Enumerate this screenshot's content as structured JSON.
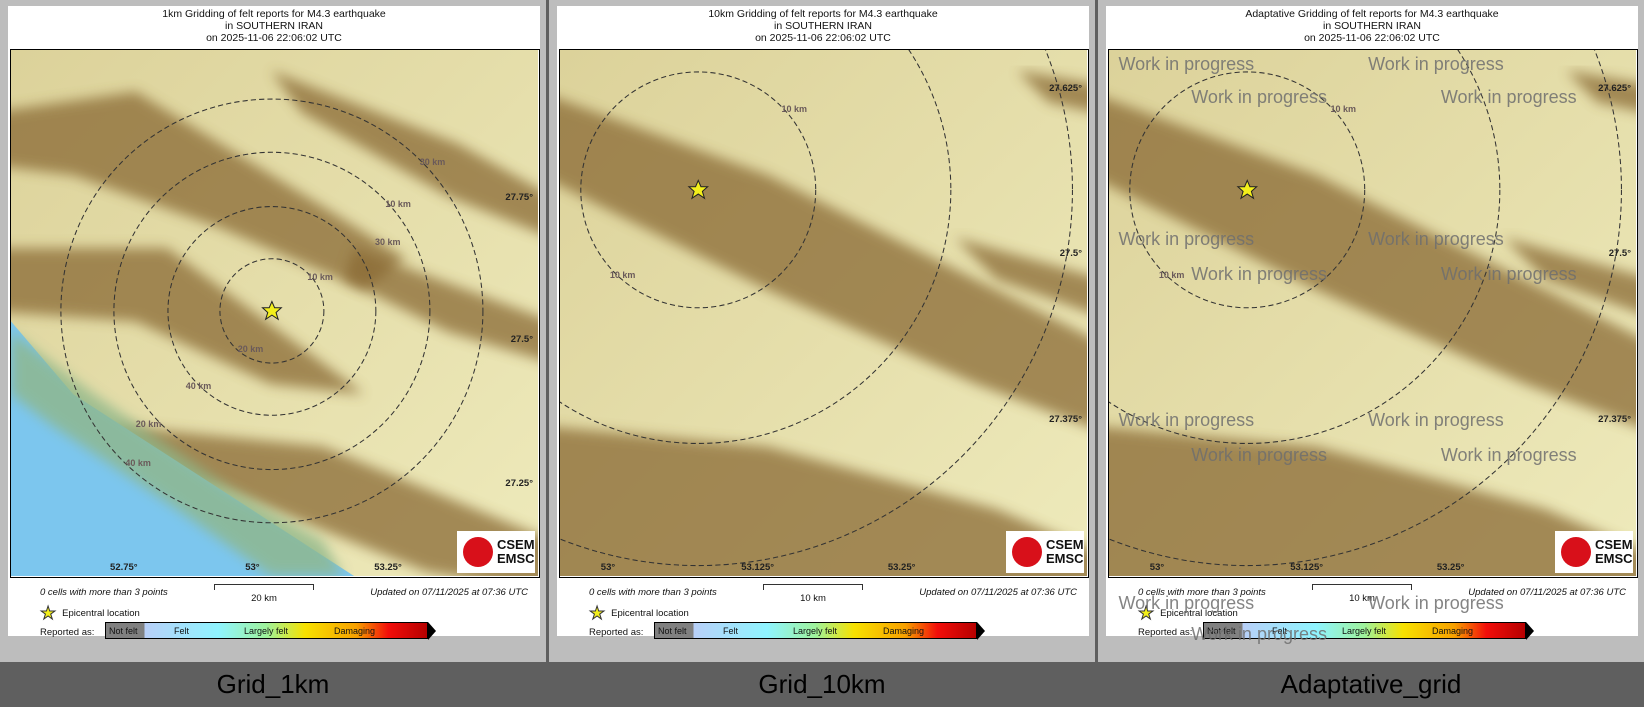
{
  "panels": [
    {
      "id": "grid-1km",
      "title": [
        "1km Gridding of felt reports for M4.3 earthquake",
        "in SOUTHERN IRAN",
        "on  2025-11-06 22:06:02 UTC"
      ],
      "lat_labels": [
        "27.75°",
        "27.5°",
        "27.25°"
      ],
      "lon_labels": [
        "52.75°",
        "53°",
        "53.25°"
      ],
      "ring_labels": [
        "10 km",
        "20 km",
        "30 km",
        "40 km",
        "10 km",
        "20 km",
        "30 km",
        "40 km"
      ],
      "cells_text": "0 cells with more than 3 points",
      "scale_label": "20 km",
      "updated": "Updated on 07/11/2025 at 07:36 UTC",
      "caption": "Grid_1km"
    },
    {
      "id": "grid-10km",
      "title": [
        "10km Gridding of felt reports for M4.3 earthquake",
        "in SOUTHERN IRAN",
        "on  2025-11-06 22:06:02 UTC"
      ],
      "lat_labels": [
        "27.625°",
        "27.5°",
        "27.375°"
      ],
      "lon_labels": [
        "53°",
        "53.125°",
        "53.25°"
      ],
      "ring_labels": [
        "10 km",
        "10 km"
      ],
      "cells_text": "0 cells with more than 3 points",
      "scale_label": "10 km",
      "updated": "Updated on 07/11/2025 at 07:36 UTC",
      "caption": "Grid_10km"
    },
    {
      "id": "adaptative-grid",
      "title": [
        "Adaptative Gridding of felt reports for M4.3 earthquake",
        "in SOUTHERN IRAN",
        "on  2025-11-06 22:06:02 UTC"
      ],
      "lat_labels": [
        "27.625°",
        "27.5°",
        "27.375°"
      ],
      "lon_labels": [
        "53°",
        "53.125°",
        "53.25°"
      ],
      "ring_labels": [
        "10 km",
        "10 km"
      ],
      "cells_text": "0 cells with more than 3 points",
      "scale_label": "10 km",
      "updated": "Updated on 07/11/2025 at 07:36 UTC",
      "caption": "Adaptative_grid",
      "watermark": "Work in progress"
    }
  ],
  "legend": {
    "epicenter": "Epicentral location",
    "reported_as": "Reported as:",
    "levels": [
      "Not felt",
      "Felt",
      "Largely felt",
      "Damaging"
    ]
  },
  "logo": {
    "line1": "CSEM",
    "line2": "EMSC"
  },
  "colors": {
    "star": "#f3ef1b",
    "land": "#ebe6b4",
    "ridge": "#8a6a35",
    "sea": "#7cc6ee",
    "logo_red": "#d8101a"
  }
}
